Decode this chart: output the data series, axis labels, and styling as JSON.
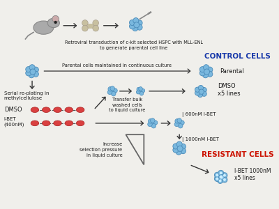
{
  "bg_color": "#f0efeb",
  "text_color": "#1a1a1a",
  "blue_cell_color": "#7ab8de",
  "blue_cell_edge": "#4a8ab8",
  "red_cell_color": "#d94040",
  "red_cell_edge": "#aa2020",
  "control_color": "#1a3aaa",
  "resistant_color": "#cc1100",
  "arrow_color": "#333333",
  "gray_icon": "#aaaaaa",
  "bone_color": "#c8c0a0",
  "labels": {
    "top_caption": "Retroviral transduction of c-kit selected HSPC with MLL-ENL\nto generate parental cell line",
    "parental_culture": "Parental cells maintained in continuous culture",
    "serial_replating": "Serial re-plating in\nmethylcellulose",
    "transfer_bulk": "Transfer bulk\nwashed cells\nto liquid culture",
    "dmso_label": "DMSO",
    "ibet_label": "I-BET\n(400nM)",
    "increase_pressure": "Increase\nselection pressure\nin liquid culture",
    "control_cells": "CONTROL CELLS",
    "resistant_cells": "RESISTANT CELLS",
    "parental_right": "Parental",
    "dmso_right": "DMSO\nx5 lines",
    "ibet_600": "| 600nM I-BET",
    "ibet_1000": "| 1000nM I-BET",
    "ibet_right": "I-BET 1000nM\nx5 lines"
  }
}
